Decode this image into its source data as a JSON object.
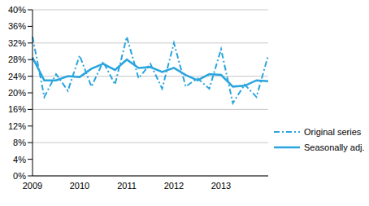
{
  "chart_data": {
    "type": "line",
    "categories": [
      "2009",
      null,
      null,
      null,
      "2010",
      null,
      null,
      null,
      "2011",
      null,
      null,
      null,
      "2012",
      null,
      null,
      null,
      "2013",
      null,
      null,
      null,
      null
    ],
    "series": [
      {
        "name": "Original series",
        "color": "#2aa5de",
        "line_style": "dashdot",
        "values": [
          33.5,
          19,
          24.5,
          20.5,
          29,
          21.5,
          27.5,
          22,
          33.5,
          23.5,
          27,
          21,
          32,
          21.5,
          23.5,
          21,
          30.5,
          17.5,
          22,
          19,
          29
        ]
      },
      {
        "name": "Seasonally adj.",
        "color": "#2aa5de",
        "line_style": "solid",
        "values": [
          28.5,
          23,
          23,
          24,
          23.8,
          25.8,
          27,
          25.5,
          28,
          26,
          26.2,
          25,
          26,
          24.3,
          23,
          24.5,
          24.3,
          21.5,
          21.7,
          23,
          22.8
        ]
      }
    ],
    "ylim": [
      0,
      40
    ],
    "yticks": [
      {
        "value": 0,
        "label": "0%"
      },
      {
        "value": 4,
        "label": "4%"
      },
      {
        "value": 8,
        "label": "8%"
      },
      {
        "value": 12,
        "label": "12%"
      },
      {
        "value": 16,
        "label": "16%"
      },
      {
        "value": 20,
        "label": "20%"
      },
      {
        "value": 24,
        "label": "24%"
      },
      {
        "value": 28,
        "label": "28%"
      },
      {
        "value": 32,
        "label": "32%"
      },
      {
        "value": 36,
        "label": "36%"
      },
      {
        "value": 40,
        "label": "40%"
      }
    ],
    "grid": true,
    "legend": "right"
  }
}
